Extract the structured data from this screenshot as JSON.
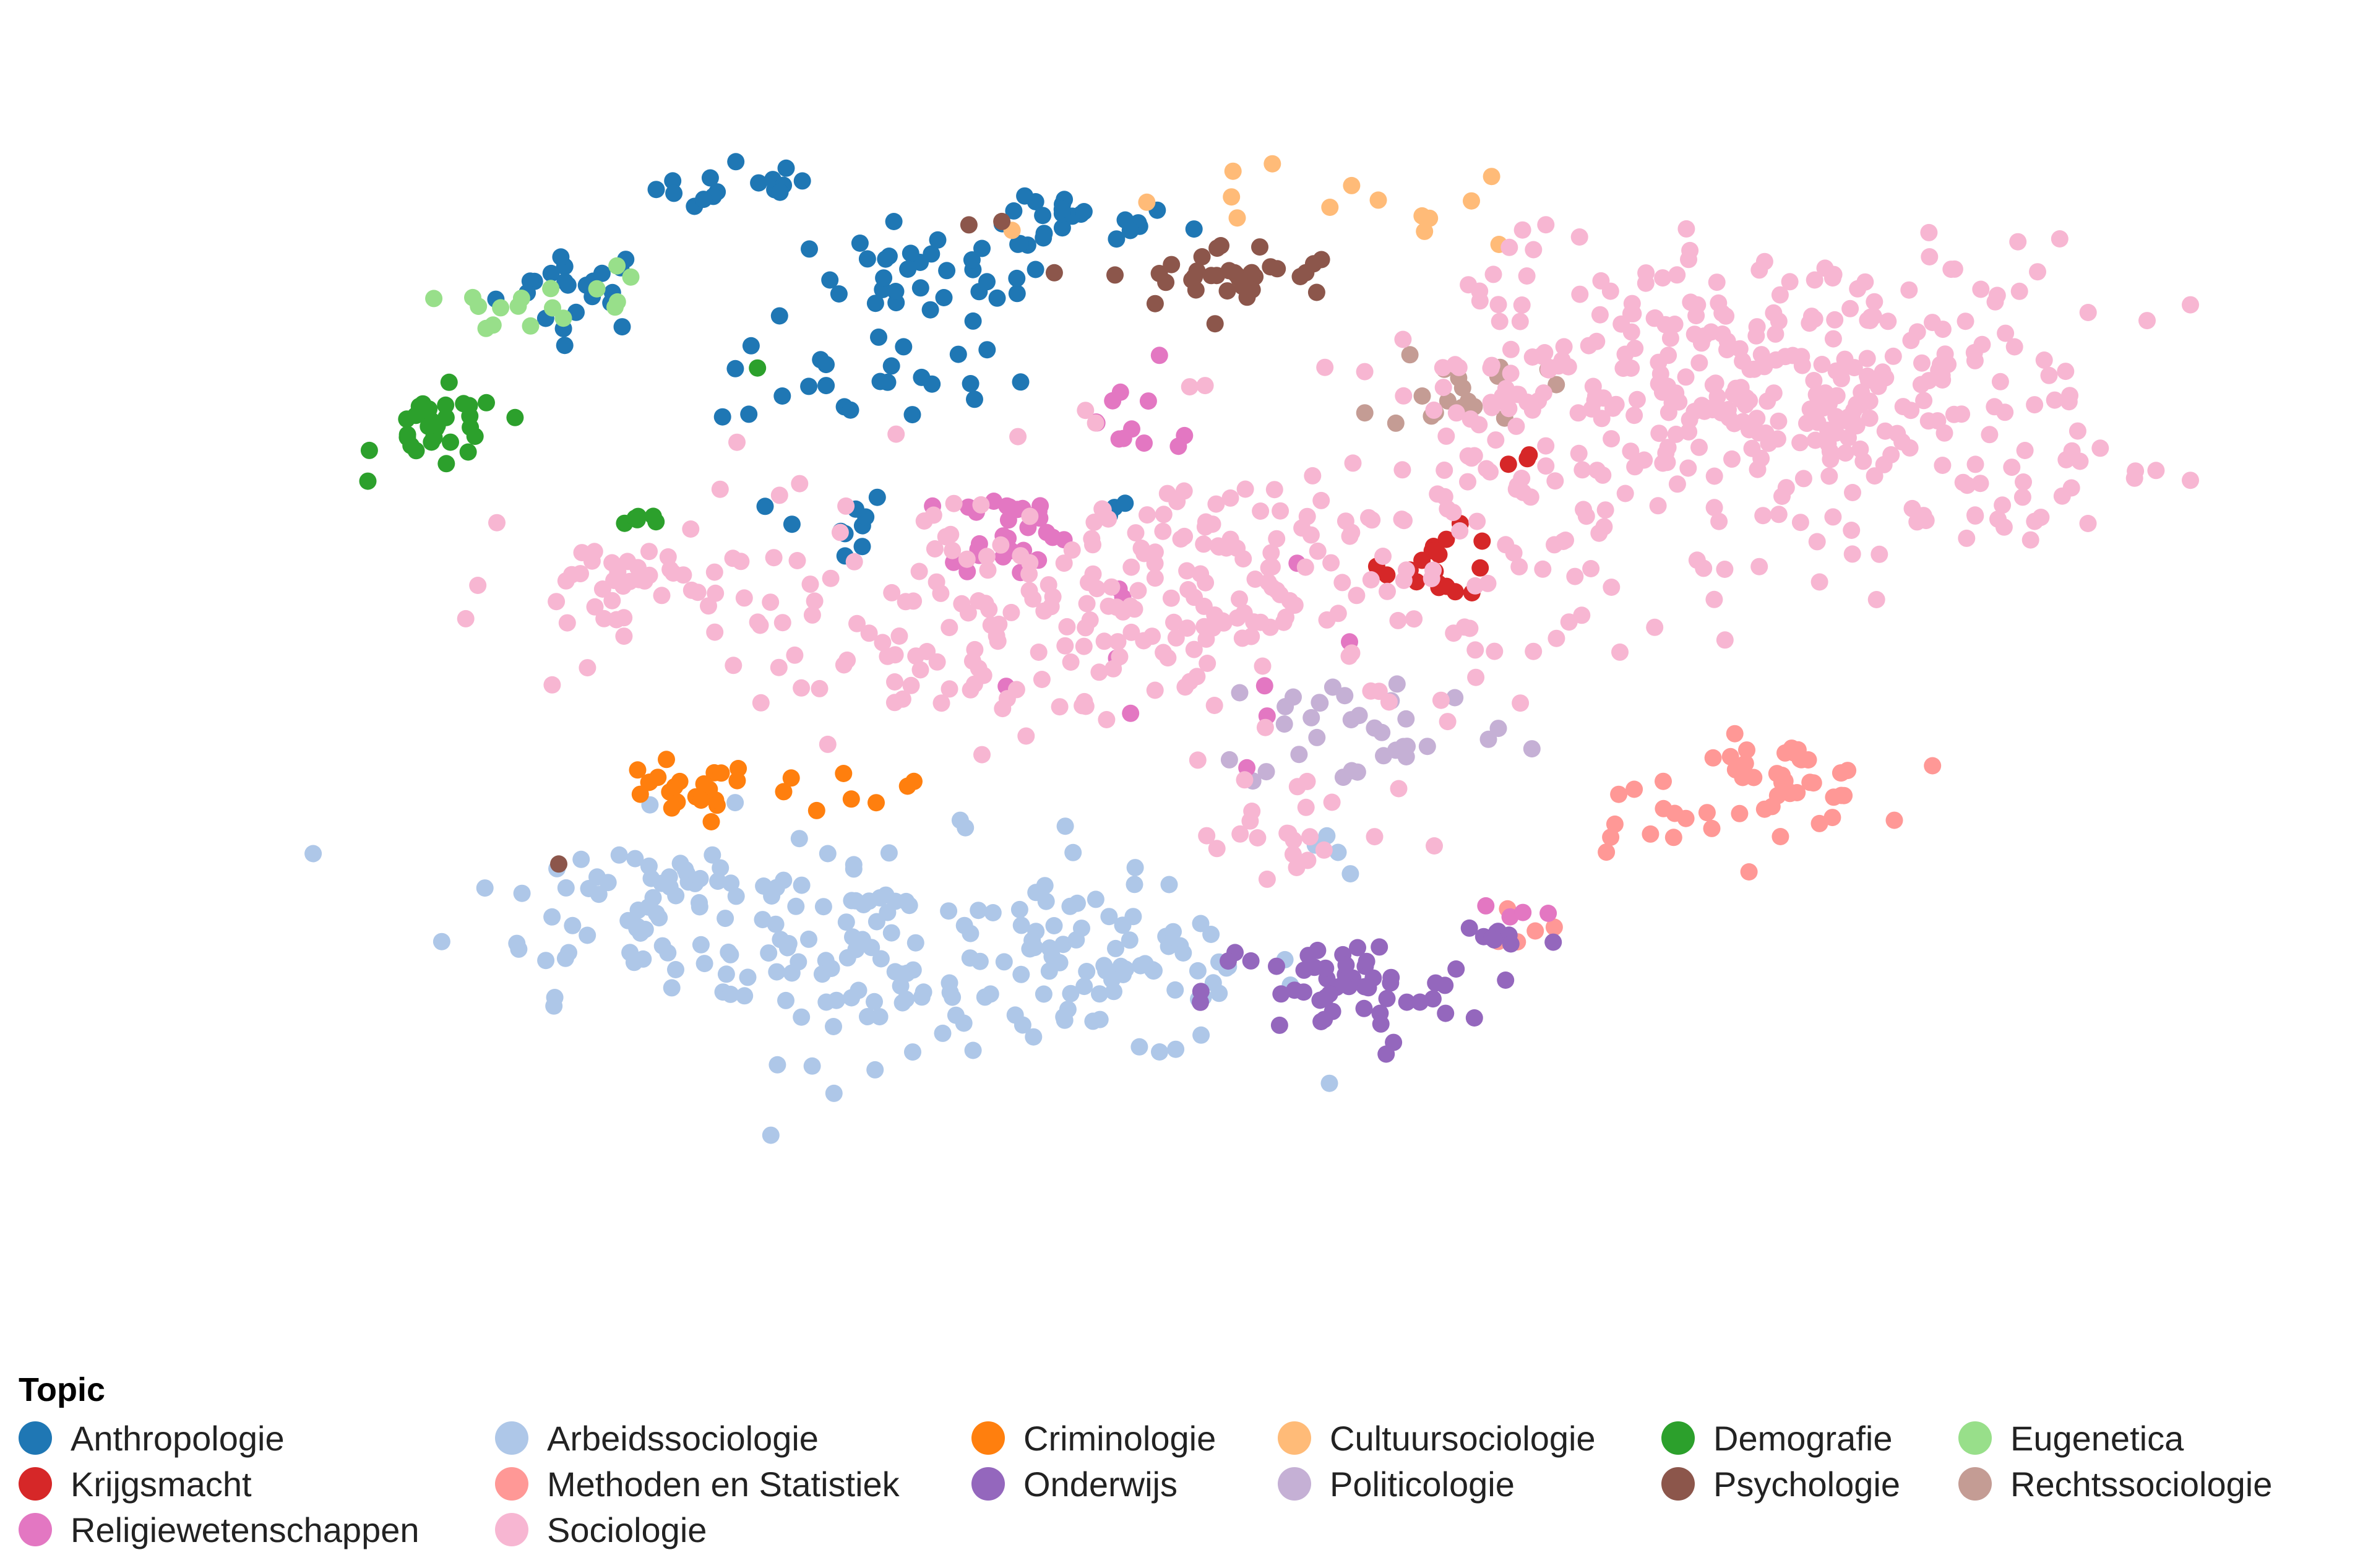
{
  "legend": {
    "title": "Topic",
    "entries": [
      {
        "label": "Anthropologie",
        "color": "#1f77b4"
      },
      {
        "label": "Arbeidssociologie",
        "color": "#aec7e8"
      },
      {
        "label": "Criminologie",
        "color": "#ff7f0e"
      },
      {
        "label": "Cultuursociologie",
        "color": "#ffbb78"
      },
      {
        "label": "Demografie",
        "color": "#2ca02c"
      },
      {
        "label": "Eugenetica",
        "color": "#98df8a"
      },
      {
        "label": "Krijgsmacht",
        "color": "#d62728"
      },
      {
        "label": "Methoden en Statistiek",
        "color": "#ff9896"
      },
      {
        "label": "Onderwijs",
        "color": "#9467bd"
      },
      {
        "label": "Politicologie",
        "color": "#c5b0d5"
      },
      {
        "label": "Psychologie",
        "color": "#8c564b"
      },
      {
        "label": "Rechtssociologie",
        "color": "#c49c94"
      },
      {
        "label": "Religiewetenschappen",
        "color": "#e377c2"
      },
      {
        "label": "Sociologie",
        "color": "#f7b6d2"
      }
    ]
  },
  "chart_data": {
    "type": "scatter",
    "title": "",
    "xlabel": "",
    "ylabel": "",
    "axes_visible": false,
    "grid": false,
    "legend_position": "bottom",
    "xlim": [
      0,
      100
    ],
    "ylim": [
      0,
      100
    ],
    "series": [
      {
        "name": "Anthropologie",
        "color": "#1f77b4",
        "clusters": [
          {
            "cx": 18,
            "cy": 84,
            "sx": 2.0,
            "sy": 2.0,
            "n": 22
          },
          {
            "cx": 27,
            "cy": 93,
            "sx": 2.5,
            "sy": 1.2,
            "n": 16
          },
          {
            "cx": 36,
            "cy": 85,
            "sx": 3.0,
            "sy": 2.0,
            "n": 35
          },
          {
            "cx": 43,
            "cy": 90,
            "sx": 3.0,
            "sy": 1.2,
            "n": 22
          },
          {
            "cx": 33,
            "cy": 76,
            "sx": 4.0,
            "sy": 2.5,
            "n": 25
          },
          {
            "cx": 31,
            "cy": 62,
            "sx": 1.5,
            "sy": 2.0,
            "n": 10
          },
          {
            "cx": 45,
            "cy": 65,
            "sx": 0.8,
            "sy": 1.0,
            "n": 3
          }
        ]
      },
      {
        "name": "Arbeidssociologie",
        "color": "#aec7e8",
        "clusters": [
          {
            "cx": 22,
            "cy": 28,
            "sx": 5.0,
            "sy": 4.0,
            "n": 70
          },
          {
            "cx": 33,
            "cy": 24,
            "sx": 5.0,
            "sy": 5.0,
            "n": 90
          },
          {
            "cx": 45,
            "cy": 22,
            "sx": 5.0,
            "sy": 4.0,
            "n": 80
          },
          {
            "cx": 57,
            "cy": 33,
            "sx": 2.0,
            "sy": 1.5,
            "n": 4
          }
        ]
      },
      {
        "name": "Criminologie",
        "color": "#ff7f0e",
        "clusters": [
          {
            "cx": 23,
            "cy": 38,
            "sx": 2.0,
            "sy": 1.5,
            "n": 22
          },
          {
            "cx": 33,
            "cy": 38,
            "sx": 3.0,
            "sy": 1.0,
            "n": 8
          }
        ]
      },
      {
        "name": "Cultuursociologie",
        "color": "#ffbb78",
        "clusters": [
          {
            "cx": 56,
            "cy": 91,
            "sx": 6.0,
            "sy": 2.0,
            "n": 15
          }
        ]
      },
      {
        "name": "Demografie",
        "color": "#2ca02c",
        "clusters": [
          {
            "cx": 11,
            "cy": 71,
            "sx": 1.6,
            "sy": 1.8,
            "n": 32
          },
          {
            "cx": 22,
            "cy": 63,
            "sx": 1.0,
            "sy": 0.4,
            "n": 6
          },
          {
            "cx": 27,
            "cy": 77,
            "sx": 0.5,
            "sy": 0.5,
            "n": 1
          }
        ]
      },
      {
        "name": "Eugenetica",
        "color": "#98df8a",
        "clusters": [
          {
            "cx": 15,
            "cy": 82,
            "sx": 1.5,
            "sy": 1.0,
            "n": 12
          },
          {
            "cx": 20,
            "cy": 85,
            "sx": 1.0,
            "sy": 2.0,
            "n": 5
          }
        ]
      },
      {
        "name": "Krijgsmacht",
        "color": "#d62728",
        "clusters": [
          {
            "cx": 62,
            "cy": 59,
            "sx": 1.5,
            "sy": 1.5,
            "n": 18
          },
          {
            "cx": 67,
            "cy": 69,
            "sx": 1.0,
            "sy": 0.5,
            "n": 3
          }
        ]
      },
      {
        "name": "Methoden en Statistiek",
        "color": "#ff9896",
        "clusters": [
          {
            "cx": 79,
            "cy": 39,
            "sx": 2.5,
            "sy": 2.0,
            "n": 45
          },
          {
            "cx": 72,
            "cy": 35,
            "sx": 2.0,
            "sy": 2.0,
            "n": 10
          },
          {
            "cx": 66,
            "cy": 28,
            "sx": 1.0,
            "sy": 2.0,
            "n": 5
          }
        ]
      },
      {
        "name": "Onderwijs",
        "color": "#9467bd",
        "clusters": [
          {
            "cx": 57,
            "cy": 20,
            "sx": 3.5,
            "sy": 2.5,
            "n": 55
          },
          {
            "cx": 65,
            "cy": 25,
            "sx": 1.5,
            "sy": 1.0,
            "n": 8
          }
        ]
      },
      {
        "name": "Politicologie",
        "color": "#c5b0d5",
        "clusters": [
          {
            "cx": 58,
            "cy": 44,
            "sx": 4.0,
            "sy": 3.0,
            "n": 35
          }
        ]
      },
      {
        "name": "Psychologie",
        "color": "#8c564b",
        "clusters": [
          {
            "cx": 51,
            "cy": 85,
            "sx": 3.0,
            "sy": 1.5,
            "n": 35
          },
          {
            "cx": 39,
            "cy": 90,
            "sx": 0.5,
            "sy": 0.5,
            "n": 2
          },
          {
            "cx": 17,
            "cy": 32,
            "sx": 0.3,
            "sy": 0.3,
            "n": 1
          }
        ]
      },
      {
        "name": "Rechtssociologie",
        "color": "#c49c94",
        "clusters": [
          {
            "cx": 63,
            "cy": 75,
            "sx": 2.0,
            "sy": 2.0,
            "n": 18
          }
        ]
      },
      {
        "name": "Religiewetenschappen",
        "color": "#e377c2",
        "clusters": [
          {
            "cx": 40,
            "cy": 62,
            "sx": 1.5,
            "sy": 2.0,
            "n": 30
          },
          {
            "cx": 46,
            "cy": 72,
            "sx": 2.5,
            "sy": 2.5,
            "n": 12
          },
          {
            "cx": 45,
            "cy": 50,
            "sx": 6.0,
            "sy": 5.0,
            "n": 10
          },
          {
            "cx": 65,
            "cy": 27,
            "sx": 1.0,
            "sy": 0.5,
            "n": 4
          }
        ]
      },
      {
        "name": "Sociologie",
        "color": "#f7b6d2",
        "clusters": [
          {
            "cx": 80,
            "cy": 74,
            "sx": 8.0,
            "sy": 7.0,
            "n": 330
          },
          {
            "cx": 67,
            "cy": 70,
            "sx": 4.0,
            "sy": 8.0,
            "n": 80
          },
          {
            "cx": 52,
            "cy": 56,
            "sx": 7.0,
            "sy": 7.0,
            "n": 150
          },
          {
            "cx": 38,
            "cy": 55,
            "sx": 8.0,
            "sy": 6.0,
            "n": 130
          },
          {
            "cx": 20,
            "cy": 57,
            "sx": 3.0,
            "sy": 2.0,
            "n": 40
          },
          {
            "cx": 53,
            "cy": 34,
            "sx": 3.0,
            "sy": 2.5,
            "n": 20
          },
          {
            "cx": 92,
            "cy": 63,
            "sx": 1.0,
            "sy": 0.4,
            "n": 5
          }
        ]
      }
    ]
  }
}
